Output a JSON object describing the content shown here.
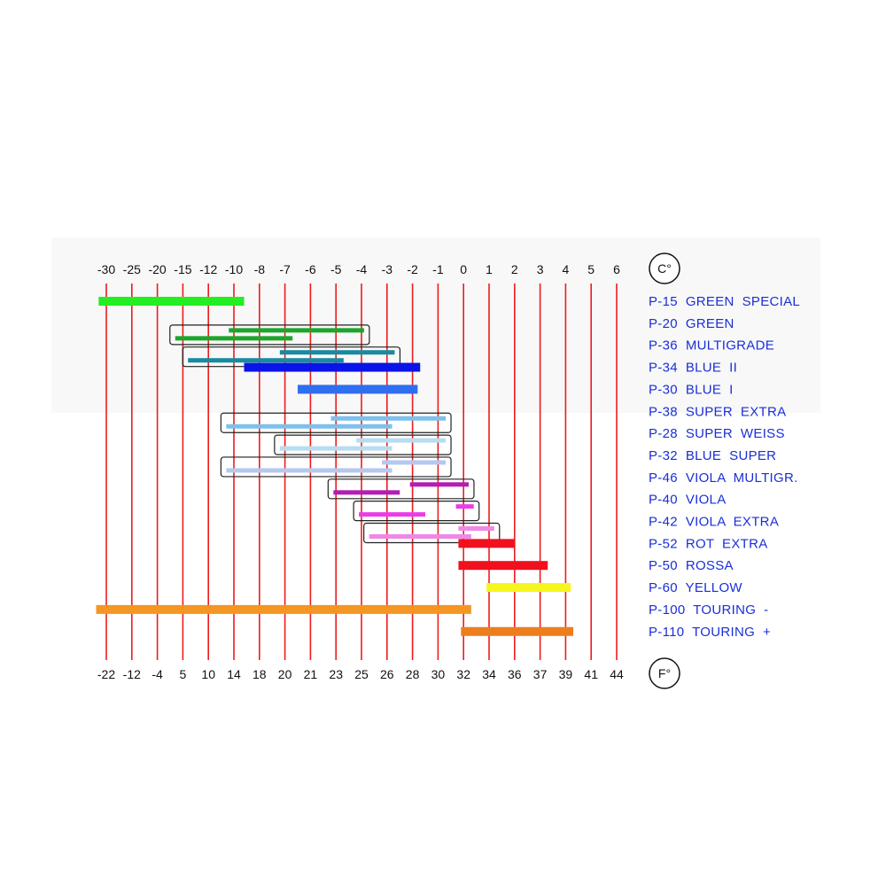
{
  "chart_data": {
    "type": "range-bar",
    "axis_top": {
      "unit": "C°",
      "ticks": [
        "-30",
        "-25",
        "-20",
        "-15",
        "-12",
        "-10",
        "-8",
        "-7",
        "-6",
        "-5",
        "-4",
        "-3",
        "-2",
        "-1",
        "0",
        "1",
        "2",
        "3",
        "4",
        "5",
        "6"
      ]
    },
    "axis_bottom": {
      "unit": "F°",
      "ticks": [
        "-22",
        "-12",
        "-4",
        "5",
        "10",
        "14",
        "18",
        "20",
        "21",
        "23",
        "25",
        "26",
        "28",
        "30",
        "32",
        "34",
        "36",
        "37",
        "39",
        "41",
        "44"
      ]
    },
    "grid": "vertical",
    "products": [
      {
        "label": "P-15  GREEN  SPECIAL",
        "color": "#22ee22",
        "boxed": false,
        "bars": [
          {
            "from": -0.3,
            "to": 5.4
          }
        ]
      },
      {
        "label": "P-20  GREEN",
        "color": "#1fa52c",
        "boxed": true,
        "bars": [
          {
            "from": 4.8,
            "to": 10.1
          },
          {
            "from": 2.7,
            "to": 7.3
          }
        ]
      },
      {
        "label": "P-36  MULTIGRADE",
        "color": "#1a8aa0",
        "boxed": true,
        "bars": [
          {
            "from": 6.8,
            "to": 11.3
          },
          {
            "from": 3.2,
            "to": 9.3
          }
        ]
      },
      {
        "label": "P-34  BLUE  II",
        "color": "#0a14e6",
        "boxed": false,
        "bars": [
          {
            "from": 5.4,
            "to": 12.3
          }
        ]
      },
      {
        "label": "P-30  BLUE  I",
        "color": "#2f6ef0",
        "boxed": false,
        "bars": [
          {
            "from": 7.5,
            "to": 12.2
          }
        ]
      },
      {
        "label": "P-38  SUPER  EXTRA",
        "color": "#7ec0ea",
        "boxed": true,
        "bars": [
          {
            "from": 8.8,
            "to": 13.3
          },
          {
            "from": 4.7,
            "to": 11.2
          }
        ]
      },
      {
        "label": "P-28  SUPER  WEISS",
        "color": "#b8dcf0",
        "boxed": true,
        "bars": [
          {
            "from": 9.8,
            "to": 13.3
          },
          {
            "from": 6.8,
            "to": 11.2
          }
        ]
      },
      {
        "label": "P-32  BLUE  SUPER",
        "color": "#b4c8f0",
        "boxed": true,
        "bars": [
          {
            "from": 10.8,
            "to": 13.3
          },
          {
            "from": 4.7,
            "to": 11.2
          }
        ]
      },
      {
        "label": "P-46  VIOLA  MULTIGR.",
        "color": "#b41cb4",
        "boxed": true,
        "bars": [
          {
            "from": 11.9,
            "to": 14.2
          },
          {
            "from": 8.9,
            "to": 11.5
          }
        ]
      },
      {
        "label": "P-40  VIOLA",
        "color": "#ec3ce6",
        "boxed": true,
        "bars": [
          {
            "from": 13.7,
            "to": 14.4
          },
          {
            "from": 9.9,
            "to": 12.5
          }
        ]
      },
      {
        "label": "P-42  VIOLA  EXTRA",
        "color": "#f088e6",
        "boxed": true,
        "bars": [
          {
            "from": 13.8,
            "to": 15.2
          },
          {
            "from": 10.3,
            "to": 14.3
          }
        ]
      },
      {
        "label": "P-52  ROT  EXTRA",
        "color": "#f0101e",
        "boxed": false,
        "bars": [
          {
            "from": 13.8,
            "to": 16.0
          }
        ]
      },
      {
        "label": "P-50  ROSSA",
        "color": "#f0101e",
        "boxed": false,
        "bars": [
          {
            "from": 13.8,
            "to": 17.3
          }
        ]
      },
      {
        "label": "P-60  YELLOW",
        "color": "#f6f61e",
        "boxed": false,
        "bars": [
          {
            "from": 14.9,
            "to": 18.2
          }
        ]
      },
      {
        "label": "P-100  TOURING  -",
        "color": "#f59622",
        "boxed": false,
        "bars": [
          {
            "from": -0.4,
            "to": 14.3
          }
        ]
      },
      {
        "label": "P-110  TOURING  +",
        "color": "#ec7e1e",
        "boxed": false,
        "bars": [
          {
            "from": 13.9,
            "to": 18.3
          }
        ]
      }
    ]
  }
}
